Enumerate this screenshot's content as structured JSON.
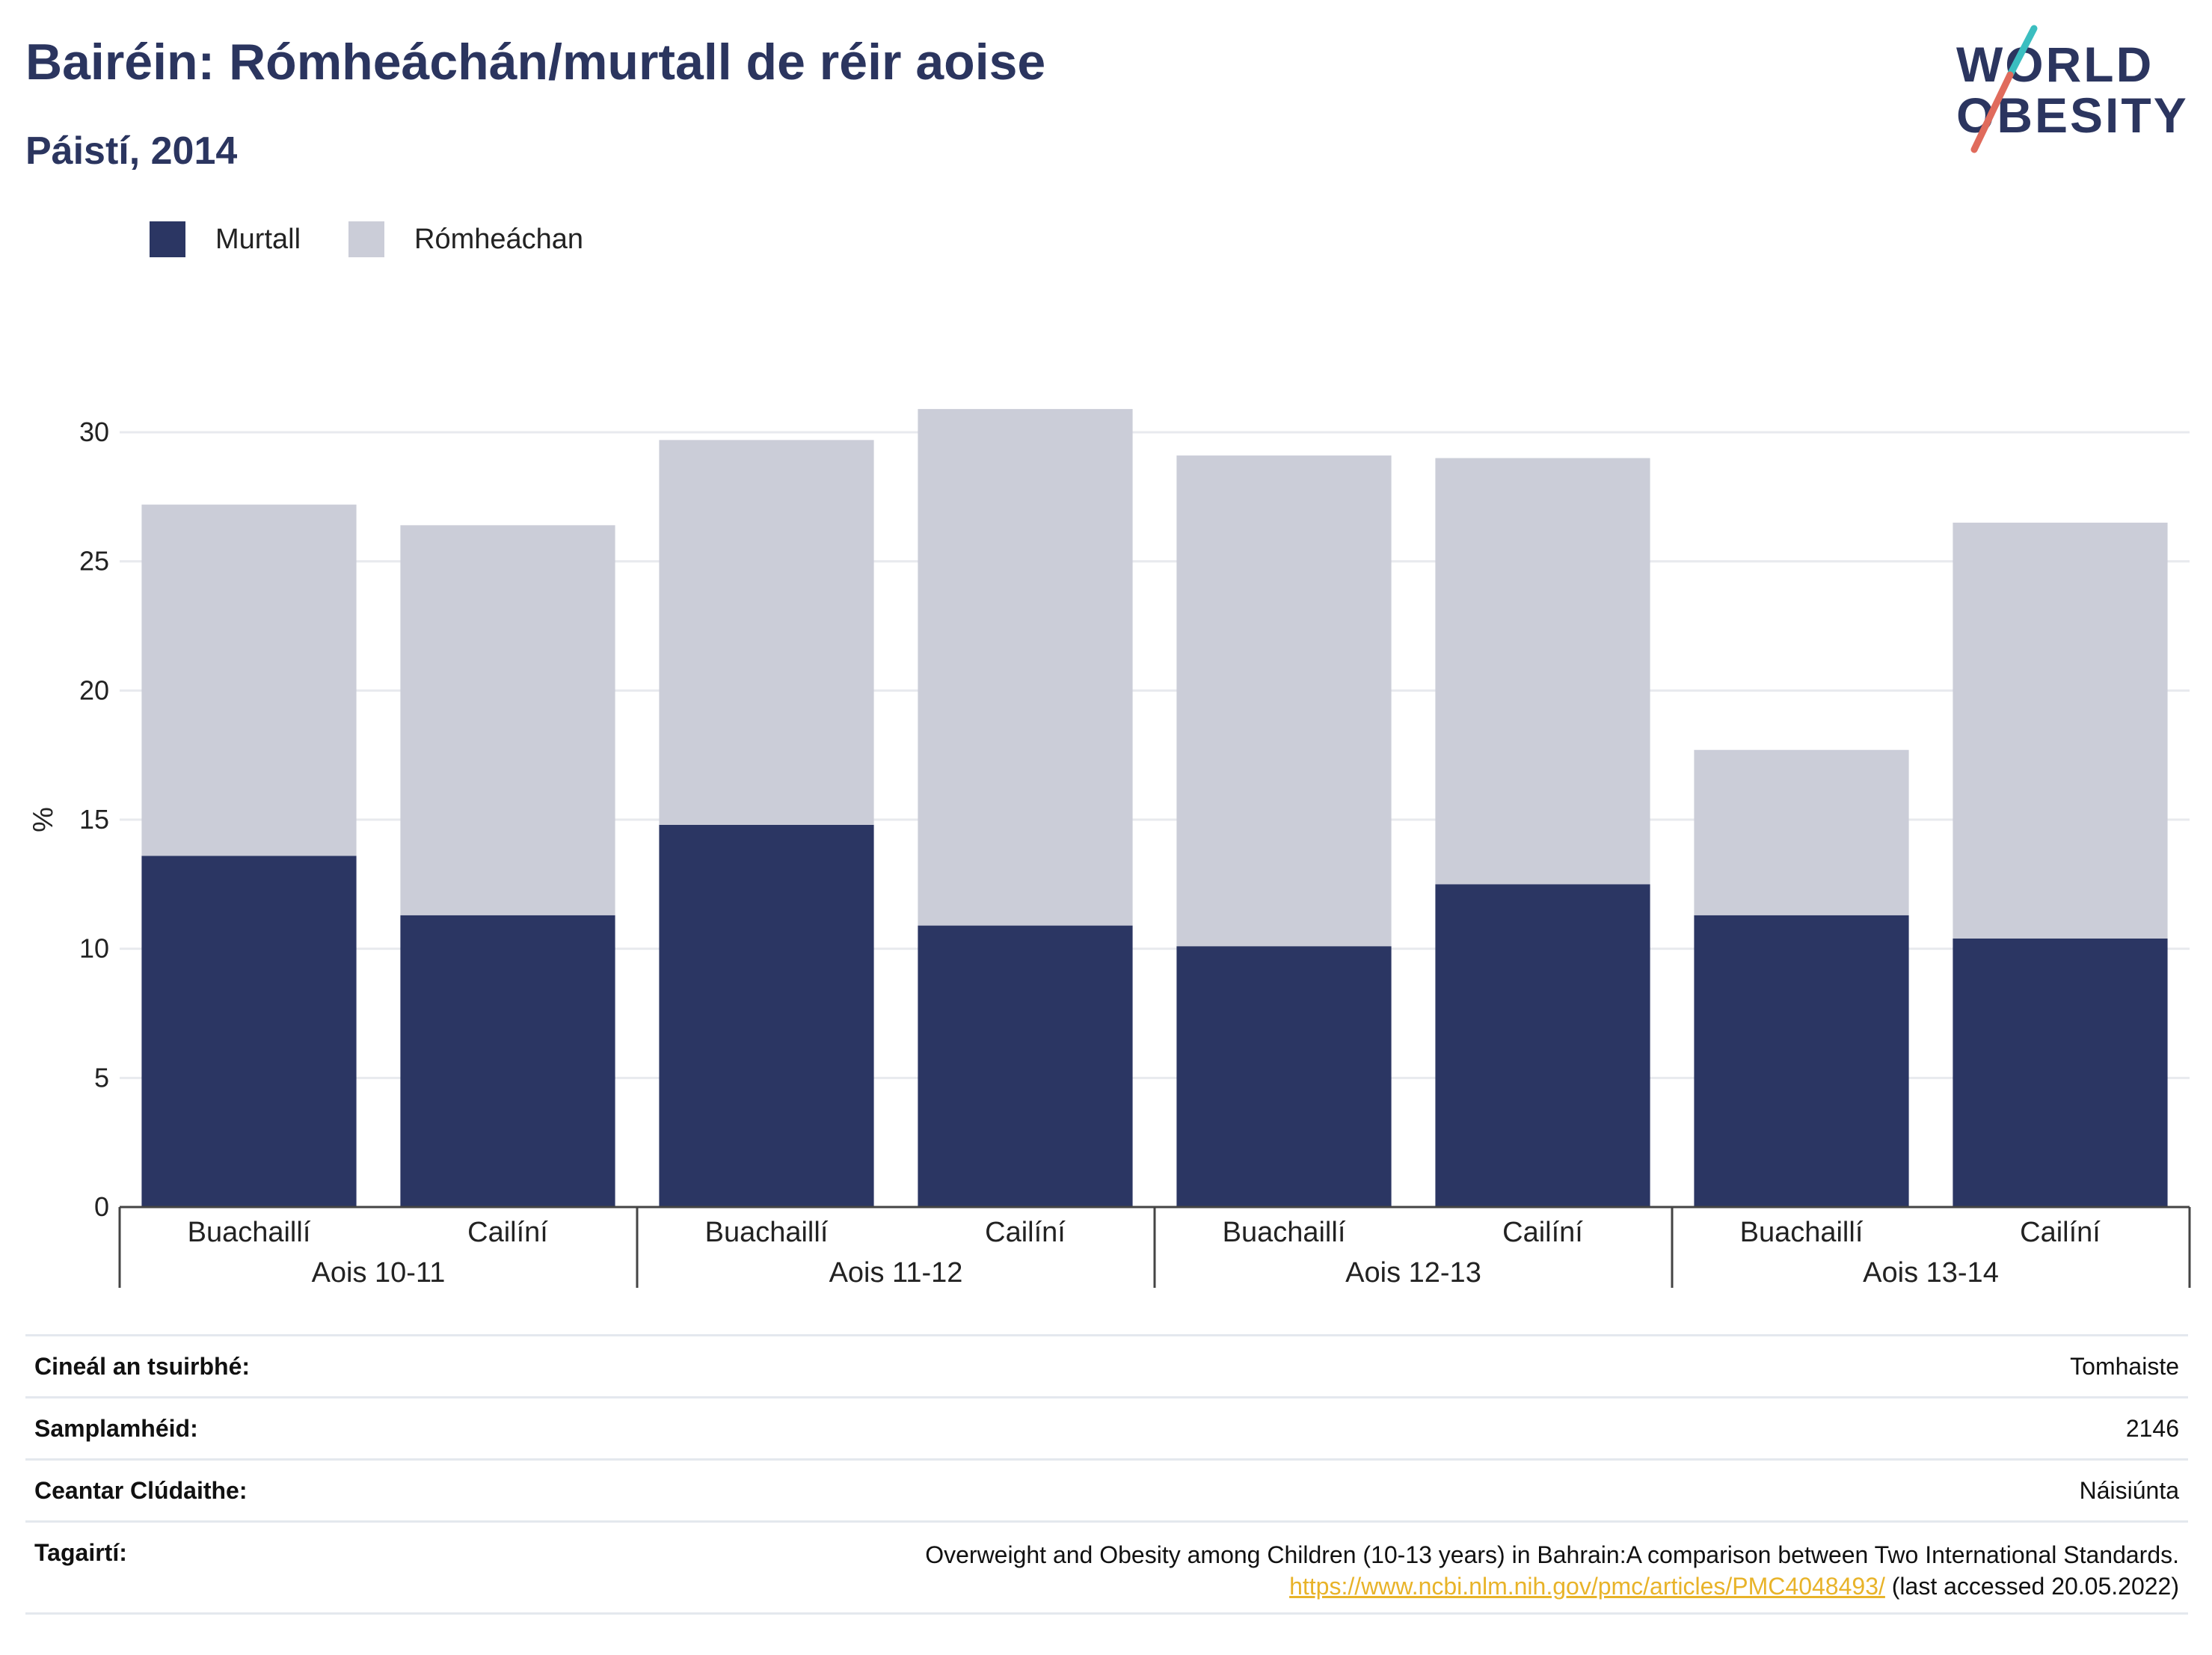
{
  "header": {
    "title": "Bairéin: Rómheáchán/murtall de réir aoise",
    "subtitle": "Páistí, 2014"
  },
  "logo": {
    "line1": "WORLD",
    "line2": "OBESITY"
  },
  "colors": {
    "obese": "#2b3663",
    "overweight": "#cbcdd8",
    "accent_teal": "#3bbec0",
    "accent_red": "#e06b5c",
    "link": "#e8b329"
  },
  "chart_data": {
    "type": "bar",
    "stacked": true,
    "ylabel": "%",
    "ylim": [
      0,
      30
    ],
    "yticks": [
      0,
      5,
      10,
      15,
      20,
      25,
      30
    ],
    "grid": true,
    "legend_position": "top-left",
    "groups": [
      "Aois 10-11",
      "Aois 11-12",
      "Aois 12-13",
      "Aois 13-14"
    ],
    "categories": [
      "Buachaillí",
      "Cailíní",
      "Buachaillí",
      "Cailíní",
      "Buachaillí",
      "Cailíní",
      "Buachaillí",
      "Cailíní"
    ],
    "series": [
      {
        "name": "Murtall",
        "values": [
          13.6,
          11.3,
          14.8,
          10.9,
          10.1,
          12.5,
          11.3,
          10.4
        ]
      },
      {
        "name": "Rómheáchan",
        "values": [
          13.6,
          15.1,
          14.9,
          20.0,
          19.0,
          16.5,
          6.4,
          16.1
        ]
      }
    ]
  },
  "info": {
    "survey_type_label": "Cineál an tsuirbhé:",
    "survey_type_value": "Tomhaiste",
    "sample_size_label": "Samplamhéid:",
    "sample_size_value": "2146",
    "coverage_label": "Ceantar Clúdaithe:",
    "coverage_value": "Náisiúnta",
    "references_label": "Tagairtí:",
    "reference_text": "Overweight and Obesity among Children (10-13 years) in Bahrain:A comparison between Two International Standards.",
    "reference_url": "https://www.ncbi.nlm.nih.gov/pmc/articles/PMC4048493/",
    "reference_accessed": " (last accessed 20.05.2022)"
  }
}
